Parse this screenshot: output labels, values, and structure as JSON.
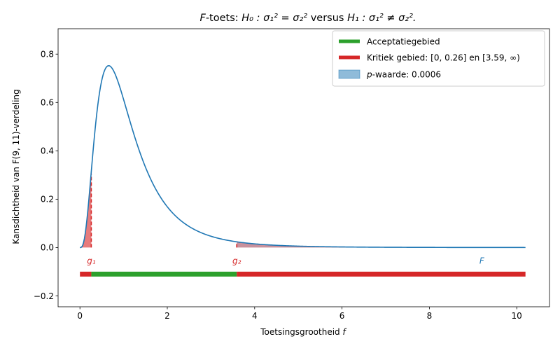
{
  "chart_data": {
    "type": "line",
    "title_parts": {
      "f": "F",
      "rest": "-toets: ",
      "h0": "H₀ : σ₁² = σ₂²",
      "versus": " versus ",
      "h1": "H₁ : σ₁² ≠ σ₂²."
    },
    "xlabel_text": "Toetsingsgrootheid ",
    "xlabel_var": "f",
    "ylabel": "Kansdichtheid van F(9, 11)-verdeling",
    "xlim": [
      -0.5,
      10.75
    ],
    "ylim": [
      -0.245,
      0.905
    ],
    "x_ticks": [
      0,
      2,
      4,
      6,
      8,
      10
    ],
    "y_ticks": [
      -0.2,
      0.0,
      0.2,
      0.4,
      0.6,
      0.8
    ],
    "x_tick_labels": [
      "0",
      "2",
      "4",
      "6",
      "8",
      "10"
    ],
    "y_tick_labels": [
      "−0.2",
      "0.0",
      "0.2",
      "0.4",
      "0.6",
      "0.8"
    ],
    "distribution": {
      "name": "F",
      "df1": 9,
      "df2": 11,
      "x_max": 10.2
    },
    "critical_values": {
      "g1": 0.26,
      "g2": 3.59
    },
    "p_value_shading_right_from": 3.59,
    "number_line_y": -0.11,
    "marker_labels": {
      "g1": "g₁",
      "g2": "g₂",
      "F": "F"
    },
    "legend": {
      "position": "top-right",
      "items": [
        {
          "label": "Acceptatiegebied",
          "color": "#2ca02c"
        },
        {
          "label": "Kritiek gebied: [0, 0.26] en [3.59, ∞)",
          "color": "#d62728"
        },
        {
          "label_var": "p",
          "label_rest": "-waarde: 0.0006",
          "color": "#1f77b4"
        }
      ]
    },
    "colors": {
      "curve": "#1f77b4",
      "accept": "#2ca02c",
      "critical": "#d62728",
      "critical_fill": "#e77c7d",
      "pvalue_fill": "#8fbbd9"
    }
  }
}
